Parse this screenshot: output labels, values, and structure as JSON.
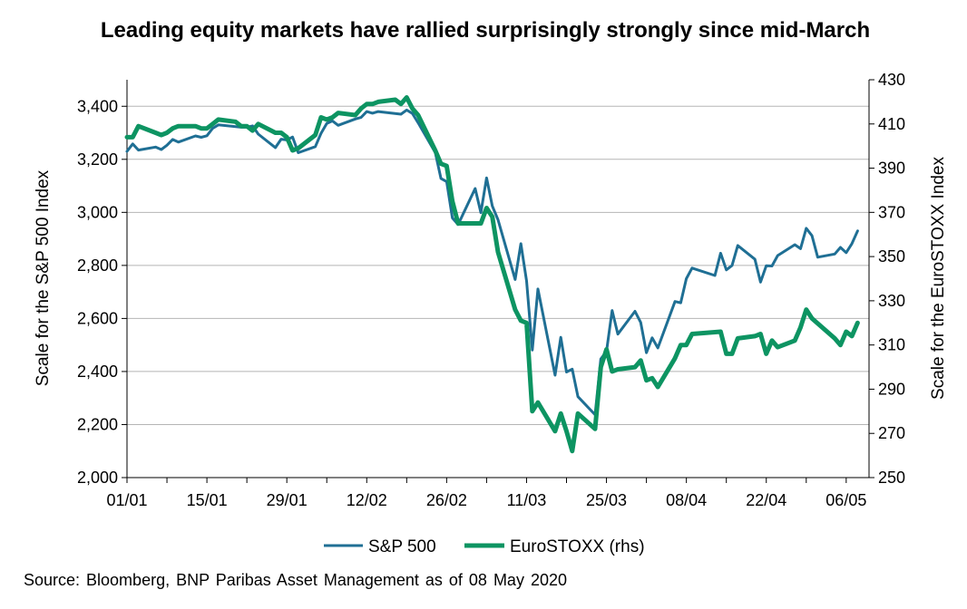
{
  "chart_data": {
    "type": "line",
    "title": "Leading equity markets have rallied surprisingly strongly since mid-March",
    "ylabel_left": "Scale for the S&P 500 Index",
    "ylabel_right": "Scale for the EuroSTOXX Index",
    "ylim_left": [
      2000,
      3500
    ],
    "ylim_right": [
      250,
      430
    ],
    "yticks_left": [
      2000,
      2200,
      2400,
      2600,
      2800,
      3000,
      3200,
      3400
    ],
    "yticks_left_labels": [
      "2,000",
      "2,200",
      "2,400",
      "2,600",
      "2,800",
      "3,000",
      "3,200",
      "3,400"
    ],
    "yticks_right": [
      250,
      270,
      290,
      310,
      330,
      350,
      370,
      390,
      410,
      430
    ],
    "xlim": [
      "2020-01-01",
      "2020-05-10"
    ],
    "xticks": [
      "2020-01-01",
      "2020-01-15",
      "2020-01-29",
      "2020-02-12",
      "2020-02-26",
      "2020-03-11",
      "2020-03-25",
      "2020-04-08",
      "2020-04-22",
      "2020-05-06"
    ],
    "xtick_labels": [
      "01/01",
      "15/01",
      "29/01",
      "12/02",
      "26/02",
      "11/03",
      "25/03",
      "08/04",
      "22/04",
      "06/05"
    ],
    "grid": "horizontal",
    "legend_position": "bottom-center",
    "series": [
      {
        "name": "S&P 500",
        "axis": "left",
        "color": "#1f6f94",
        "x": [
          "2020-01-01",
          "2020-01-02",
          "2020-01-03",
          "2020-01-06",
          "2020-01-07",
          "2020-01-08",
          "2020-01-09",
          "2020-01-10",
          "2020-01-13",
          "2020-01-14",
          "2020-01-15",
          "2020-01-16",
          "2020-01-17",
          "2020-01-21",
          "2020-01-22",
          "2020-01-23",
          "2020-01-24",
          "2020-01-27",
          "2020-01-28",
          "2020-01-29",
          "2020-01-30",
          "2020-01-31",
          "2020-02-03",
          "2020-02-04",
          "2020-02-05",
          "2020-02-06",
          "2020-02-07",
          "2020-02-10",
          "2020-02-11",
          "2020-02-12",
          "2020-02-13",
          "2020-02-14",
          "2020-02-18",
          "2020-02-19",
          "2020-02-20",
          "2020-02-21",
          "2020-02-24",
          "2020-02-25",
          "2020-02-26",
          "2020-02-27",
          "2020-02-28",
          "2020-03-02",
          "2020-03-03",
          "2020-03-04",
          "2020-03-05",
          "2020-03-06",
          "2020-03-09",
          "2020-03-10",
          "2020-03-11",
          "2020-03-12",
          "2020-03-13",
          "2020-03-16",
          "2020-03-17",
          "2020-03-18",
          "2020-03-19",
          "2020-03-20",
          "2020-03-23",
          "2020-03-24",
          "2020-03-25",
          "2020-03-26",
          "2020-03-27",
          "2020-03-30",
          "2020-03-31",
          "2020-04-01",
          "2020-04-02",
          "2020-04-03",
          "2020-04-06",
          "2020-04-07",
          "2020-04-08",
          "2020-04-09",
          "2020-04-13",
          "2020-04-14",
          "2020-04-15",
          "2020-04-16",
          "2020-04-17",
          "2020-04-20",
          "2020-04-21",
          "2020-04-22",
          "2020-04-23",
          "2020-04-24",
          "2020-04-27",
          "2020-04-28",
          "2020-04-29",
          "2020-04-30",
          "2020-05-01",
          "2020-05-04",
          "2020-05-05",
          "2020-05-06",
          "2020-05-07",
          "2020-05-08"
        ],
        "values": [
          3230,
          3258,
          3235,
          3246,
          3237,
          3253,
          3275,
          3265,
          3288,
          3283,
          3289,
          3317,
          3330,
          3321,
          3321,
          3326,
          3295,
          3244,
          3276,
          3273,
          3284,
          3225,
          3248,
          3298,
          3335,
          3345,
          3328,
          3352,
          3358,
          3380,
          3374,
          3380,
          3370,
          3386,
          3373,
          3338,
          3226,
          3128,
          3116,
          2979,
          2954,
          3090,
          2999,
          3130,
          3024,
          2972,
          2747,
          2882,
          2741,
          2481,
          2711,
          2386,
          2529,
          2398,
          2409,
          2305,
          2237,
          2447,
          2476,
          2630,
          2541,
          2627,
          2585,
          2471,
          2527,
          2489,
          2664,
          2659,
          2750,
          2790,
          2762,
          2846,
          2783,
          2800,
          2875,
          2823,
          2737,
          2799,
          2798,
          2837,
          2878,
          2863,
          2940,
          2912,
          2831,
          2843,
          2868,
          2848,
          2882,
          2930
        ]
      },
      {
        "name": "EuroSTOXX (rhs)",
        "axis": "right",
        "color": "#0d9462",
        "x": [
          "2020-01-01",
          "2020-01-02",
          "2020-01-03",
          "2020-01-06",
          "2020-01-07",
          "2020-01-08",
          "2020-01-09",
          "2020-01-10",
          "2020-01-13",
          "2020-01-14",
          "2020-01-15",
          "2020-01-16",
          "2020-01-17",
          "2020-01-20",
          "2020-01-21",
          "2020-01-22",
          "2020-01-23",
          "2020-01-24",
          "2020-01-27",
          "2020-01-28",
          "2020-01-29",
          "2020-01-30",
          "2020-01-31",
          "2020-02-03",
          "2020-02-04",
          "2020-02-05",
          "2020-02-06",
          "2020-02-07",
          "2020-02-10",
          "2020-02-11",
          "2020-02-12",
          "2020-02-13",
          "2020-02-14",
          "2020-02-17",
          "2020-02-18",
          "2020-02-19",
          "2020-02-20",
          "2020-02-21",
          "2020-02-24",
          "2020-02-25",
          "2020-02-26",
          "2020-02-27",
          "2020-02-28",
          "2020-03-02",
          "2020-03-03",
          "2020-03-04",
          "2020-03-05",
          "2020-03-06",
          "2020-03-09",
          "2020-03-10",
          "2020-03-11",
          "2020-03-12",
          "2020-03-13",
          "2020-03-16",
          "2020-03-17",
          "2020-03-18",
          "2020-03-19",
          "2020-03-20",
          "2020-03-23",
          "2020-03-24",
          "2020-03-25",
          "2020-03-26",
          "2020-03-27",
          "2020-03-30",
          "2020-03-31",
          "2020-04-01",
          "2020-04-02",
          "2020-04-03",
          "2020-04-06",
          "2020-04-07",
          "2020-04-08",
          "2020-04-09",
          "2020-04-14",
          "2020-04-15",
          "2020-04-16",
          "2020-04-17",
          "2020-04-20",
          "2020-04-21",
          "2020-04-22",
          "2020-04-23",
          "2020-04-24",
          "2020-04-27",
          "2020-04-28",
          "2020-04-29",
          "2020-04-30",
          "2020-05-04",
          "2020-05-05",
          "2020-05-06",
          "2020-05-07",
          "2020-05-08"
        ],
        "values": [
          404,
          404,
          409,
          406,
          405,
          406,
          408,
          409,
          409,
          408,
          408,
          410,
          412,
          411,
          409,
          409,
          407,
          410,
          406,
          406,
          404,
          398,
          399,
          405,
          413,
          412,
          413,
          415,
          414,
          417,
          419,
          419,
          420,
          421,
          419,
          422,
          417,
          414,
          398,
          392,
          391,
          375,
          365,
          365,
          365,
          372,
          368,
          352,
          326,
          321,
          320,
          280,
          284,
          271,
          279,
          271,
          262,
          279,
          272,
          300,
          308,
          298,
          299,
          300,
          303,
          294,
          295,
          291,
          304,
          310,
          310,
          315,
          316,
          306,
          306,
          313,
          314,
          315,
          306,
          312,
          309,
          312,
          318,
          326,
          322,
          313,
          310,
          316,
          314,
          320
        ]
      }
    ]
  },
  "legend": {
    "items": [
      "S&P 500",
      "EuroSTOXX (rhs)"
    ]
  },
  "source": "Source: Bloomberg, BNP Paribas Asset Management as of 08 May 2020"
}
